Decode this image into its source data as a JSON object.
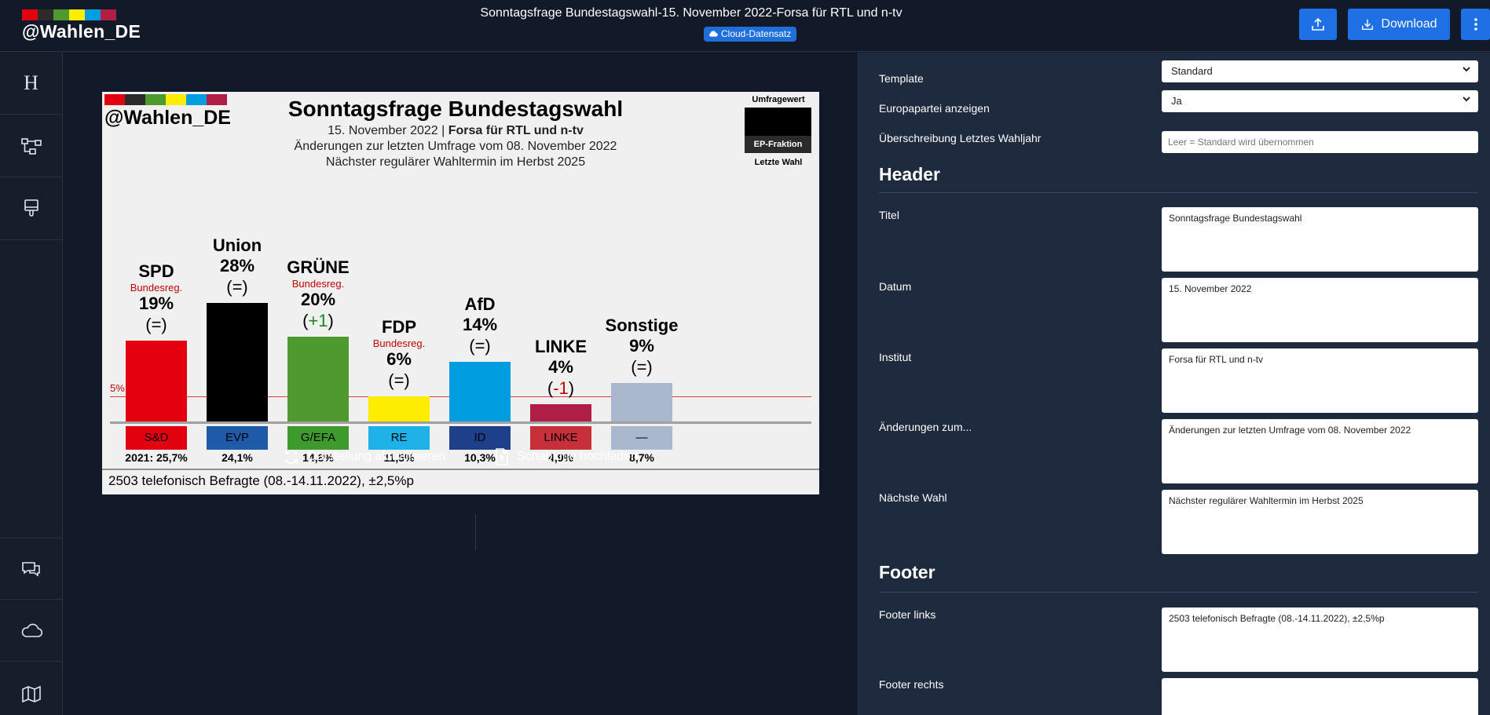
{
  "app": {
    "logo_text": "@Wahlen_DE",
    "title": "Sonntagsfrage Bundestagswahl-15. November 2022-Forsa für RTL und n-tv",
    "cloud_badge": "Cloud-Datensatz",
    "download_label": "Download",
    "brand_colors": [
      "#e3000f",
      "#2b2b2b",
      "#4f9a2e",
      "#ffed00",
      "#009ee0",
      "#b11e45"
    ]
  },
  "sidebar": {
    "items": [
      {
        "icon": "heading-icon",
        "glyph": "H"
      },
      {
        "icon": "hierarchy-icon"
      },
      {
        "icon": "paint-brush-icon"
      },
      {
        "icon": "comments-icon"
      },
      {
        "icon": "cloud-icon"
      },
      {
        "icon": "map-icon"
      }
    ]
  },
  "chart": {
    "logo_text": "@Wahlen_DE",
    "title": "Sonntagsfrage Bundestagswahl",
    "date": "15. November 2022",
    "separator": "|",
    "institute": "Forsa für RTL und n-tv",
    "changes_note": "Änderungen zur letzten Umfrage vom 08. November 2022",
    "next_election": "Nächster regulärer Wahltermin im Herbst 2025",
    "legend_top": "Umfragewert",
    "legend_ep": "EP-Fraktion",
    "legend_last": "Letzte Wahl",
    "threshold_label": "5%",
    "footer_left": "2503 telefonisch Befragte (08.-14.11.2022), ±2,5%p"
  },
  "chart_data": {
    "type": "bar",
    "title": "Sonntagsfrage Bundestagswahl",
    "categories": [
      "SPD",
      "Union",
      "GRÜNE",
      "FDP",
      "AfD",
      "LINKE",
      "Sonstige"
    ],
    "values": [
      19,
      28,
      20,
      6,
      14,
      4,
      9
    ],
    "value_labels": [
      "19%",
      "28%",
      "20%",
      "6%",
      "14%",
      "4%",
      "9%"
    ],
    "changes": [
      "(=)",
      "(=)",
      "(+1)",
      "(=)",
      "(=)",
      "(-1)",
      "(=)"
    ],
    "change_signs": [
      "same",
      "same",
      "up",
      "same",
      "same",
      "down",
      "same"
    ],
    "government": [
      "Bundesreg.",
      "",
      "Bundesreg.",
      "Bundesreg.",
      "",
      "",
      ""
    ],
    "colors": [
      "#e3000f",
      "#000000",
      "#4f9a2e",
      "#ffed00",
      "#009ee0",
      "#b11e45",
      "#a9b8cc"
    ],
    "ep_factions": [
      "S&D",
      "EVP",
      "G/EFA",
      "RE",
      "ID",
      "LINKE",
      "—"
    ],
    "ep_colors": [
      "#e3000f",
      "#1e5aa8",
      "#3f9a2e",
      "#1eb2e9",
      "#1e3f8a",
      "#c7303a",
      "#a9b8cc"
    ],
    "ep_text_colors": [
      "#000000",
      "#000000",
      "#000000",
      "#000000",
      "#000000",
      "#000000",
      "#000000"
    ],
    "last_election": [
      "2021: 25,7%",
      "24,1%",
      "14,8%",
      "11,5%",
      "10,3%",
      "4,9%",
      "8,7%"
    ],
    "threshold": 5,
    "ylim": [
      0,
      32
    ]
  },
  "actions": {
    "refresh_label": "Darstellung aktualisieren",
    "upload_template_label": "Schablone hochladen"
  },
  "panel": {
    "template_label": "Template",
    "template_value": "Standard",
    "europa_label": "Europapartei anzeigen",
    "europa_value": "Ja",
    "override_label": "Überschreibung Letztes Wahljahr",
    "override_placeholder": "Leer = Standard wird übernommen",
    "header_heading": "Header",
    "titel_label": "Titel",
    "titel_value": "Sonntagsfrage Bundestagswahl",
    "datum_label": "Datum",
    "datum_value": "15. November 2022",
    "institut_label": "Institut",
    "institut_value": "Forsa für RTL und n-tv",
    "aenderungen_label": "Änderungen zum...",
    "aenderungen_value": "Änderungen zur letzten Umfrage vom 08. November 2022",
    "naechste_label": "Nächste Wahl",
    "naechste_value": "Nächster regulärer Wahltermin im Herbst 2025",
    "footer_heading": "Footer",
    "footer_links_label": "Footer links",
    "footer_links_value": "2503 telefonisch Befragte (08.-14.11.2022), ±2,5%p",
    "footer_rechts_label": "Footer rechts",
    "footer_rechts_value": ""
  }
}
